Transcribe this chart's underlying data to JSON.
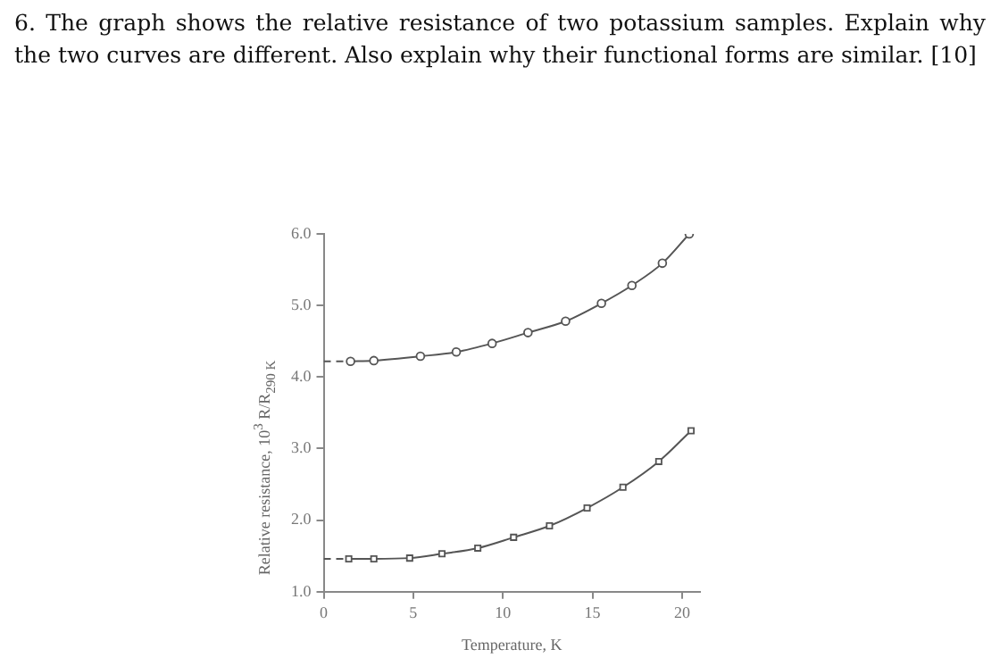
{
  "chart_data": {
    "type": "line",
    "title": "6. The graph shows the relative resistance of two potassium samples. Explain why the two curves are different. Also explain why their functional forms are similar. [10]",
    "xlabel": "Temperature, K",
    "ylabel": "Relative resistance, 10$^{3}$ R/R$_{290 K}$",
    "xlim": [
      0,
      21
    ],
    "xticks": [
      0,
      5,
      10,
      15,
      20
    ],
    "ylim": [
      1,
      6
    ],
    "yticks": [
      {
        "value": 1,
        "label": "1.0"
      },
      {
        "value": 2,
        "label": "2.0"
      },
      {
        "value": 3,
        "label": "3.0"
      },
      {
        "value": 4,
        "label": "4.0"
      },
      {
        "value": 5,
        "label": "5.0"
      },
      {
        "value": 6,
        "label": "6.0"
      }
    ],
    "grid": false,
    "legend": false,
    "series": [
      {
        "color": "#555555",
        "marker": "circle",
        "line_style": "solid",
        "x": [
          1.5,
          2.8,
          5.4,
          7.4,
          9.4,
          11.4,
          13.5,
          15.5,
          17.2,
          18.9,
          20.4
        ],
        "values": [
          4.22,
          4.23,
          4.29,
          4.35,
          4.47,
          4.62,
          4.78,
          5.03,
          5.28,
          5.59,
          6.0
        ]
      },
      {
        "color": "#555555",
        "marker": "square",
        "line_style": "solid",
        "x": [
          1.4,
          2.8,
          4.8,
          6.6,
          8.6,
          10.6,
          12.6,
          14.7,
          16.7,
          18.7,
          20.5
        ],
        "values": [
          1.46,
          1.46,
          1.47,
          1.53,
          1.61,
          1.76,
          1.92,
          2.17,
          2.46,
          2.82,
          3.25
        ]
      },
      {
        "color": "#555555",
        "marker": "none",
        "line_style": "dashed",
        "x": [
          0,
          1.5
        ],
        "values": [
          4.22,
          4.22
        ]
      },
      {
        "color": "#555555",
        "marker": "none",
        "line_style": "dashed",
        "x": [
          0,
          1.4
        ],
        "values": [
          1.46,
          1.46
        ]
      }
    ]
  }
}
